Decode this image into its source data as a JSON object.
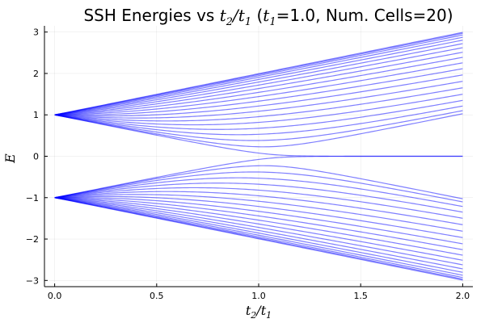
{
  "chart_data": {
    "type": "line",
    "title_parts": {
      "prefix": "SSH Energies vs ",
      "ratio_num_var": "t",
      "ratio_num_sub": "2",
      "ratio_slash": "/",
      "ratio_den_var": "t",
      "ratio_den_sub": "1",
      "paren_open": " (",
      "param_var": "t",
      "param_sub": "1",
      "suffix": "=1.0, Num. Cells=20)"
    },
    "xlabel_parts": {
      "num_var": "t",
      "num_sub": "2",
      "slash": "/",
      "den_var": "t",
      "den_sub": "1"
    },
    "ylabel": "E",
    "xlim": [
      -0.05,
      2.05
    ],
    "ylim": [
      -3.15,
      3.15
    ],
    "x_ticks": [
      0.0,
      0.5,
      1.0,
      1.5,
      2.0
    ],
    "x_tick_labels": [
      "0.0",
      "0.5",
      "1.0",
      "1.5",
      "2.0"
    ],
    "y_ticks": [
      -3,
      -2,
      -1,
      0,
      1,
      2,
      3
    ],
    "y_tick_labels": [
      "−3",
      "−2",
      "−1",
      "0",
      "1",
      "2",
      "3"
    ],
    "grid": true,
    "legend": "none",
    "x_domain": [
      0.0,
      2.0
    ],
    "num_cells": 20,
    "t1": 1.0,
    "series_color": "#0000ff",
    "series_opacity": 0.5,
    "num_series": 40,
    "series_description": "Energy eigenvalues of the open SSH chain; one line per eigenvalue (40), symmetric about E=0; two zero-mode edge states for t2/t1 > 1"
  }
}
